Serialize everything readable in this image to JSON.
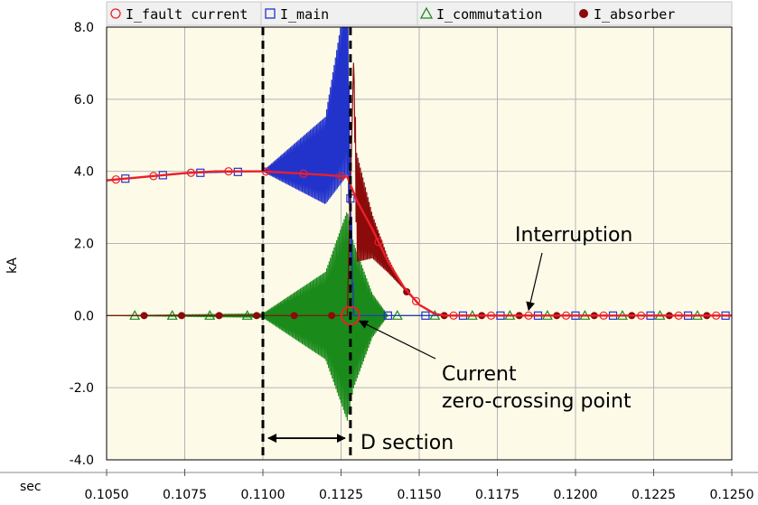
{
  "chart_data": {
    "type": "line",
    "xlabel": "sec",
    "ylabel": "kA",
    "xlim": [
      0.105,
      0.125
    ],
    "ylim": [
      -4.0,
      8.0
    ],
    "x_ticks": [
      "0.1050",
      "0.1075",
      "0.1100",
      "0.1125",
      "0.1150",
      "0.1175",
      "0.1200",
      "0.1225",
      "0.1250"
    ],
    "y_ticks": [
      "8.0",
      "6.0",
      "4.0",
      "2.0",
      "0.0",
      "-2.0",
      "-4.0"
    ],
    "grid": true,
    "legend_position": "top",
    "series": [
      {
        "name": "I_fault current",
        "color": "#e8202a",
        "marker": "circle-open",
        "x": [
          0.105,
          0.1075,
          0.1085,
          0.11,
          0.112,
          0.1127,
          0.113,
          0.1135,
          0.114,
          0.1145,
          0.115,
          0.1155,
          0.1158,
          0.1165,
          0.118,
          0.1225,
          0.125
        ],
        "y": [
          3.75,
          3.95,
          4.0,
          4.0,
          3.9,
          3.85,
          3.2,
          2.4,
          1.5,
          0.8,
          0.3,
          0.05,
          0.0,
          0.0,
          0.0,
          0.0,
          0.0
        ]
      },
      {
        "name": "I_main",
        "color": "#2233cc",
        "marker": "square-open",
        "x": [
          0.105,
          0.1075,
          0.11,
          0.112,
          0.1127,
          0.1129,
          0.125
        ],
        "y": [
          3.75,
          3.95,
          4.0,
          4.3,
          6.5,
          0.0,
          0.0
        ],
        "oscillation_envelope_kA": [
          0.0,
          0.0,
          0.0,
          1.2,
          2.6,
          0.0,
          0.0
        ]
      },
      {
        "name": "I_commutation",
        "color": "#1a8a1a",
        "marker": "triangle-open",
        "x": [
          0.105,
          0.11,
          0.112,
          0.1127,
          0.1129,
          0.1135,
          0.114,
          0.125
        ],
        "y": [
          0.0,
          0.0,
          0.0,
          0.0,
          0.0,
          0.0,
          0.0,
          0.0
        ],
        "oscillation_envelope_kA": [
          0.0,
          0.05,
          1.2,
          2.9,
          2.0,
          0.6,
          0.0,
          0.0
        ]
      },
      {
        "name": "I_absorber",
        "color": "#8b0a0a",
        "marker": "circle-filled",
        "x": [
          0.105,
          0.1127,
          0.1129,
          0.113,
          0.1135,
          0.114,
          0.1145,
          0.115,
          0.1155,
          0.1158,
          0.125
        ],
        "y": [
          0.0,
          0.0,
          7.0,
          3.0,
          2.2,
          1.4,
          0.75,
          0.3,
          0.05,
          0.0,
          0.0
        ],
        "oscillation_envelope_kA": [
          0.0,
          0.0,
          0.0,
          1.5,
          0.6,
          0.2,
          0.0,
          0.0,
          0.0,
          0.0,
          0.0
        ]
      }
    ],
    "vertical_lines": [
      0.11,
      0.1128
    ],
    "annotations": [
      {
        "text": "Interruption",
        "target_x": 0.1185,
        "target_y": 0.05
      },
      {
        "text": "Current",
        "text2": "zero-crossing point",
        "target_x": 0.1128,
        "target_y": 0.0
      },
      {
        "text": "D section",
        "from_x": 0.11,
        "to_x": 0.1128,
        "arrow_y": -3.5
      }
    ]
  }
}
